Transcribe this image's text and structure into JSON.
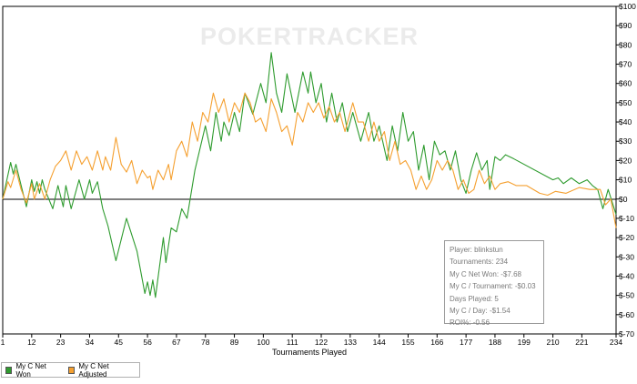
{
  "chart_data": {
    "type": "line",
    "watermark": "POKERTRACKER",
    "xlabel": "Tournaments Played",
    "ylabel": "",
    "xlim": [
      1,
      234
    ],
    "ylim": [
      -70,
      100
    ],
    "x_ticks": [
      1,
      12,
      23,
      34,
      45,
      56,
      67,
      78,
      89,
      100,
      111,
      122,
      133,
      144,
      155,
      166,
      177,
      188,
      199,
      210,
      221,
      234
    ],
    "y_tick_labels": [
      "$100",
      "$90",
      "$80",
      "$70",
      "$60",
      "$50",
      "$40",
      "$30",
      "$20",
      "$10",
      "$0",
      "$-10",
      "$-20",
      "$-30",
      "$-40",
      "$-50",
      "$-60",
      "$-70"
    ],
    "y_tick_values": [
      100,
      90,
      80,
      70,
      60,
      50,
      40,
      30,
      20,
      10,
      0,
      -10,
      -20,
      -30,
      -40,
      -50,
      -60,
      -70
    ],
    "grid": false,
    "legend_position": "bottom-left",
    "series": [
      {
        "name": "My C Net Won",
        "color": "#2e9b2e",
        "points": [
          [
            1,
            0
          ],
          [
            4,
            19
          ],
          [
            5,
            13
          ],
          [
            6,
            18
          ],
          [
            10,
            -4
          ],
          [
            12,
            10
          ],
          [
            13,
            4
          ],
          [
            14,
            9
          ],
          [
            15,
            3
          ],
          [
            16,
            10
          ],
          [
            17,
            5
          ],
          [
            20,
            -5
          ],
          [
            22,
            7
          ],
          [
            24,
            -4
          ],
          [
            25,
            7
          ],
          [
            27,
            -5
          ],
          [
            30,
            10
          ],
          [
            32,
            0
          ],
          [
            34,
            10
          ],
          [
            35,
            3
          ],
          [
            37,
            9
          ],
          [
            39,
            -5
          ],
          [
            41,
            -14
          ],
          [
            44,
            -32
          ],
          [
            48,
            -10
          ],
          [
            52,
            -27
          ],
          [
            55,
            -49
          ],
          [
            56,
            -43
          ],
          [
            57,
            -50
          ],
          [
            58,
            -42
          ],
          [
            59,
            -51
          ],
          [
            62,
            -20
          ],
          [
            63,
            -33
          ],
          [
            65,
            -15
          ],
          [
            67,
            -17
          ],
          [
            69,
            -5
          ],
          [
            71,
            -10
          ],
          [
            74,
            15
          ],
          [
            78,
            38
          ],
          [
            80,
            25
          ],
          [
            82,
            45
          ],
          [
            84,
            30
          ],
          [
            85,
            40
          ],
          [
            87,
            33
          ],
          [
            89,
            45
          ],
          [
            91,
            35
          ],
          [
            93,
            55
          ],
          [
            96,
            44
          ],
          [
            99,
            60
          ],
          [
            101,
            50
          ],
          [
            103,
            76
          ],
          [
            105,
            55
          ],
          [
            107,
            45
          ],
          [
            109,
            65
          ],
          [
            112,
            45
          ],
          [
            115,
            66
          ],
          [
            117,
            55
          ],
          [
            118,
            66
          ],
          [
            120,
            50
          ],
          [
            122,
            60
          ],
          [
            124,
            40
          ],
          [
            126,
            55
          ],
          [
            128,
            40
          ],
          [
            130,
            50
          ],
          [
            132,
            35
          ],
          [
            134,
            45
          ],
          [
            137,
            30
          ],
          [
            140,
            45
          ],
          [
            142,
            30
          ],
          [
            144,
            38
          ],
          [
            147,
            20
          ],
          [
            149,
            38
          ],
          [
            151,
            25
          ],
          [
            153,
            45
          ],
          [
            155,
            30
          ],
          [
            157,
            35
          ],
          [
            159,
            15
          ],
          [
            161,
            28
          ],
          [
            163,
            10
          ],
          [
            165,
            30
          ],
          [
            167,
            23
          ],
          [
            169,
            25
          ],
          [
            171,
            15
          ],
          [
            173,
            25
          ],
          [
            175,
            10
          ],
          [
            177,
            3
          ],
          [
            179,
            15
          ],
          [
            181,
            24
          ],
          [
            183,
            15
          ],
          [
            185,
            20
          ],
          [
            186,
            5
          ],
          [
            188,
            22
          ],
          [
            190,
            20
          ],
          [
            192,
            23
          ],
          [
            195,
            21
          ],
          [
            210,
            10
          ],
          [
            212,
            11
          ],
          [
            214,
            8
          ],
          [
            217,
            11
          ],
          [
            220,
            8
          ],
          [
            223,
            10
          ],
          [
            225,
            7
          ],
          [
            227,
            5
          ],
          [
            229,
            -5
          ],
          [
            231,
            5
          ],
          [
            234,
            -8
          ]
        ]
      },
      {
        "name": "My C Net Adjusted",
        "color": "#f5a030",
        "points": [
          [
            1,
            0
          ],
          [
            3,
            9
          ],
          [
            4,
            6
          ],
          [
            6,
            15
          ],
          [
            8,
            5
          ],
          [
            10,
            -2
          ],
          [
            12,
            8
          ],
          [
            13,
            0
          ],
          [
            15,
            8
          ],
          [
            17,
            0
          ],
          [
            19,
            10
          ],
          [
            21,
            17
          ],
          [
            23,
            20
          ],
          [
            25,
            25
          ],
          [
            27,
            15
          ],
          [
            29,
            25
          ],
          [
            31,
            18
          ],
          [
            33,
            22
          ],
          [
            35,
            15
          ],
          [
            37,
            25
          ],
          [
            39,
            15
          ],
          [
            40,
            22
          ],
          [
            42,
            15
          ],
          [
            44,
            32
          ],
          [
            46,
            18
          ],
          [
            48,
            14
          ],
          [
            50,
            20
          ],
          [
            52,
            8
          ],
          [
            54,
            15
          ],
          [
            56,
            11
          ],
          [
            57,
            12
          ],
          [
            58,
            5
          ],
          [
            60,
            15
          ],
          [
            62,
            10
          ],
          [
            64,
            18
          ],
          [
            65,
            10
          ],
          [
            67,
            25
          ],
          [
            69,
            30
          ],
          [
            71,
            22
          ],
          [
            73,
            40
          ],
          [
            75,
            30
          ],
          [
            77,
            45
          ],
          [
            79,
            40
          ],
          [
            81,
            55
          ],
          [
            83,
            45
          ],
          [
            85,
            52
          ],
          [
            87,
            40
          ],
          [
            89,
            50
          ],
          [
            91,
            45
          ],
          [
            93,
            55
          ],
          [
            95,
            50
          ],
          [
            97,
            40
          ],
          [
            99,
            42
          ],
          [
            101,
            35
          ],
          [
            103,
            52
          ],
          [
            105,
            45
          ],
          [
            107,
            35
          ],
          [
            109,
            38
          ],
          [
            111,
            28
          ],
          [
            113,
            45
          ],
          [
            115,
            40
          ],
          [
            117,
            50
          ],
          [
            119,
            45
          ],
          [
            121,
            50
          ],
          [
            123,
            42
          ],
          [
            125,
            48
          ],
          [
            127,
            40
          ],
          [
            129,
            45
          ],
          [
            131,
            35
          ],
          [
            134,
            50
          ],
          [
            136,
            40
          ],
          [
            138,
            40
          ],
          [
            140,
            30
          ],
          [
            142,
            40
          ],
          [
            144,
            30
          ],
          [
            146,
            35
          ],
          [
            148,
            20
          ],
          [
            150,
            30
          ],
          [
            152,
            18
          ],
          [
            154,
            20
          ],
          [
            156,
            15
          ],
          [
            158,
            5
          ],
          [
            160,
            12
          ],
          [
            162,
            5
          ],
          [
            164,
            10
          ],
          [
            166,
            20
          ],
          [
            168,
            15
          ],
          [
            170,
            20
          ],
          [
            172,
            15
          ],
          [
            174,
            5
          ],
          [
            176,
            10
          ],
          [
            178,
            3
          ],
          [
            180,
            5
          ],
          [
            182,
            15
          ],
          [
            184,
            8
          ],
          [
            186,
            12
          ],
          [
            188,
            5
          ],
          [
            190,
            8
          ],
          [
            193,
            9
          ],
          [
            196,
            7
          ],
          [
            200,
            7
          ],
          [
            205,
            3
          ],
          [
            208,
            2
          ],
          [
            211,
            4
          ],
          [
            215,
            3
          ],
          [
            220,
            6
          ],
          [
            224,
            5
          ],
          [
            228,
            5
          ],
          [
            230,
            -3
          ],
          [
            232,
            0
          ],
          [
            234,
            -15
          ]
        ]
      }
    ],
    "stats": {
      "player": "Player: blinkstun",
      "tournaments": "Tournaments: 234",
      "net_won": "My C Net Won: -$7.68",
      "per_tournament": "My C / Tournament: -$0.03",
      "days_played": "Days Played: 5",
      "per_day": "My C / Day: -$1.54",
      "roi": "ROI%: -0.56"
    }
  }
}
